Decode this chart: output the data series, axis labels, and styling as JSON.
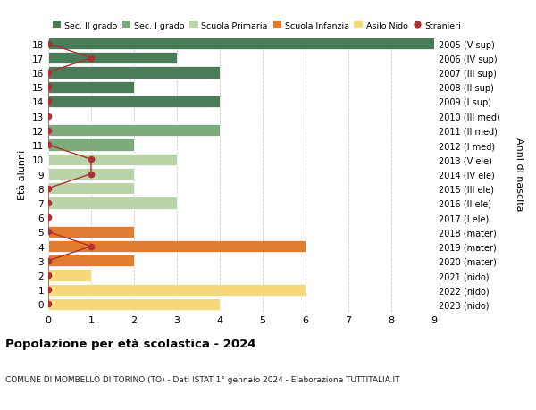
{
  "ages": [
    18,
    17,
    16,
    15,
    14,
    13,
    12,
    11,
    10,
    9,
    8,
    7,
    6,
    5,
    4,
    3,
    2,
    1,
    0
  ],
  "right_labels": [
    "2005 (V sup)",
    "2006 (IV sup)",
    "2007 (III sup)",
    "2008 (II sup)",
    "2009 (I sup)",
    "2010 (III med)",
    "2011 (II med)",
    "2012 (I med)",
    "2013 (V ele)",
    "2014 (IV ele)",
    "2015 (III ele)",
    "2016 (II ele)",
    "2017 (I ele)",
    "2018 (mater)",
    "2019 (mater)",
    "2020 (mater)",
    "2021 (nido)",
    "2022 (nido)",
    "2023 (nido)"
  ],
  "bar_values": [
    9,
    3,
    4,
    2,
    4,
    0,
    4,
    2,
    3,
    2,
    2,
    3,
    0,
    2,
    6,
    2,
    1,
    6,
    4
  ],
  "bar_colors": [
    "#4a7c59",
    "#4a7c59",
    "#4a7c59",
    "#4a7c59",
    "#4a7c59",
    "#7daa7d",
    "#7daa7d",
    "#7daa7d",
    "#b8d4a8",
    "#b8d4a8",
    "#b8d4a8",
    "#b8d4a8",
    "#b8d4a8",
    "#e07b30",
    "#e07b30",
    "#e07b30",
    "#f5d87c",
    "#f5d87c",
    "#f5d87c"
  ],
  "stranieri_values": [
    0,
    1,
    0,
    0,
    0,
    0,
    0,
    0,
    1,
    1,
    0,
    0,
    0,
    0,
    1,
    0,
    0,
    0,
    0
  ],
  "stranieri_color": "#b03030",
  "legend_labels": [
    "Sec. II grado",
    "Sec. I grado",
    "Scuola Primaria",
    "Scuola Infanzia",
    "Asilo Nido",
    "Stranieri"
  ],
  "legend_colors": [
    "#4a7c59",
    "#7daa7d",
    "#b8d4a8",
    "#e07b30",
    "#f5d87c",
    "#b03030"
  ],
  "title": "Popolazione per età scolastica - 2024",
  "subtitle": "COMUNE DI MOMBELLO DI TORINO (TO) - Dati ISTAT 1° gennaio 2024 - Elaborazione TUTTITALIA.IT",
  "ylabel_left": "Età alunni",
  "ylabel_right": "Anni di nascita",
  "xlim": [
    0,
    9
  ],
  "ylim_min": -0.5,
  "ylim_max": 18.5,
  "background_color": "#ffffff",
  "grid_color": "#cccccc",
  "bar_height": 0.82
}
